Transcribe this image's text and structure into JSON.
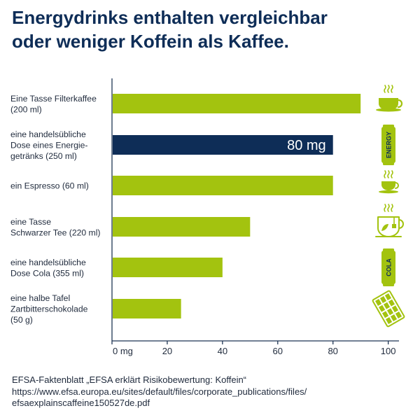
{
  "title_lines": [
    "Energydrinks enthalten vergleichbar",
    "oder weniger Koffein als Kaffee."
  ],
  "colors": {
    "bar": "#a3c30f",
    "highlight": "#0e2d57",
    "axis": "#1f3554",
    "icon": "#a3c30f",
    "title": "#0e2d57"
  },
  "chart_data": {
    "type": "bar",
    "orientation": "horizontal",
    "title": "Energydrinks enthalten vergleichbar oder weniger Koffein als Kaffee.",
    "xlabel": "",
    "ylabel": "",
    "unit": "mg",
    "xlim": [
      0,
      100
    ],
    "grid": false,
    "legend": "none",
    "categories": [
      [
        "Eine Tasse Filterkaffee",
        "(200 ml)"
      ],
      [
        "eine handelsübliche",
        "Dose eines Energie-",
        "getränks (250 ml)"
      ],
      [
        "ein Espresso (60 ml)"
      ],
      [
        "eine Tasse",
        "Schwarzer Tee (220 ml)"
      ],
      [
        "eine handelsübliche",
        "Dose Cola (355 ml)"
      ],
      [
        "eine halbe Tafel",
        "Zartbitterschokolade",
        "(50 g)"
      ]
    ],
    "values": [
      90,
      80,
      80,
      50,
      40,
      25
    ],
    "highlight_index": 1,
    "data_labels": [
      "",
      "80 mg",
      "",
      "",
      "",
      ""
    ],
    "icons": [
      "coffee-cup-icon",
      "energy-can-icon",
      "espresso-cup-icon",
      "tea-cup-icon",
      "cola-can-icon",
      "chocolate-bar-icon"
    ],
    "icon_text": {
      "energy": "ENERGY",
      "cola": "COLA"
    },
    "x_ticks": [
      0,
      20,
      40,
      60,
      80,
      100
    ],
    "x_tick_labels": [
      "0 mg",
      "20",
      "40",
      "60",
      "80",
      "100"
    ]
  },
  "source_lines": [
    "EFSA-Faktenblatt „EFSA erklärt Risikobewertung: Koffein“",
    "https://www.efsa.europa.eu/sites/default/files/corporate_publications/files/",
    "efsaexplainscaffeine150527de.pdf"
  ]
}
